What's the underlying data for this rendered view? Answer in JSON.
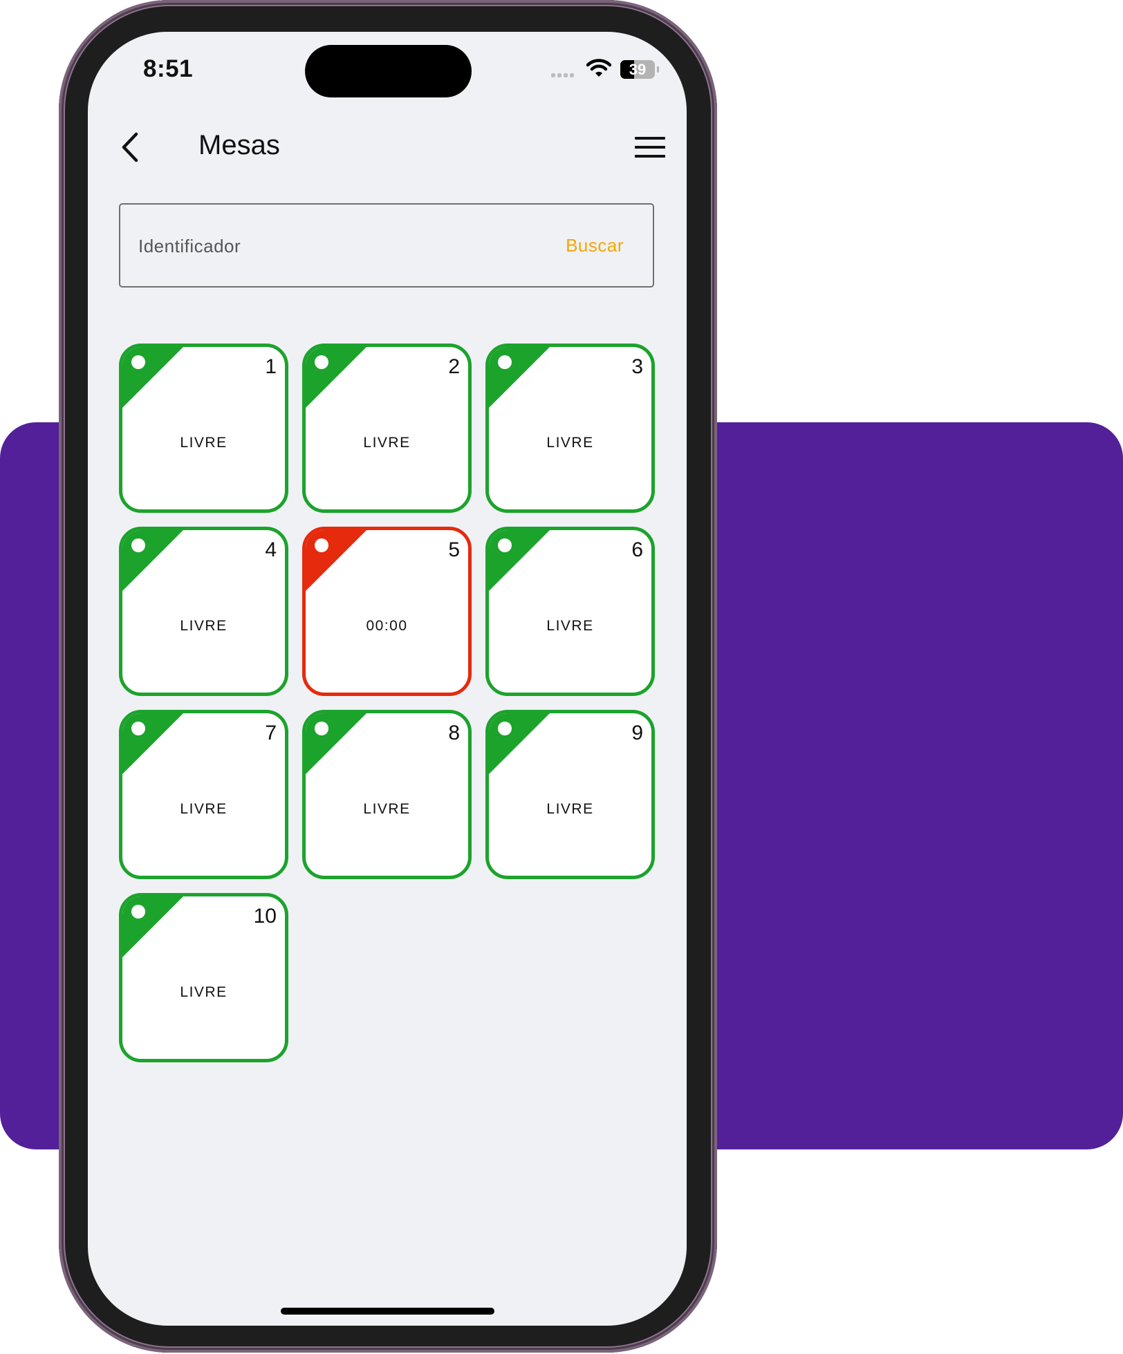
{
  "status_bar": {
    "time": "8:51",
    "battery": "39",
    "icons": [
      "signal-icon",
      "wifi-icon",
      "battery-icon"
    ]
  },
  "header": {
    "title": "Mesas",
    "back_icon": "chevron-left-icon",
    "menu_icon": "hamburger-menu-icon"
  },
  "search": {
    "placeholder": "Identificador",
    "value": "",
    "button_label": "Buscar"
  },
  "colors": {
    "free": "#1ca32c",
    "occupied": "#e52a0e",
    "accent": "#f5a800",
    "background_panel": "#53209a"
  },
  "tables": [
    {
      "number": "1",
      "status": "LIVRE",
      "state": "free"
    },
    {
      "number": "2",
      "status": "LIVRE",
      "state": "free"
    },
    {
      "number": "3",
      "status": "LIVRE",
      "state": "free"
    },
    {
      "number": "4",
      "status": "LIVRE",
      "state": "free"
    },
    {
      "number": "5",
      "status": "00:00",
      "state": "occupied"
    },
    {
      "number": "6",
      "status": "LIVRE",
      "state": "free"
    },
    {
      "number": "7",
      "status": "LIVRE",
      "state": "free"
    },
    {
      "number": "8",
      "status": "LIVRE",
      "state": "free"
    },
    {
      "number": "9",
      "status": "LIVRE",
      "state": "free"
    },
    {
      "number": "10",
      "status": "LIVRE",
      "state": "free"
    }
  ]
}
